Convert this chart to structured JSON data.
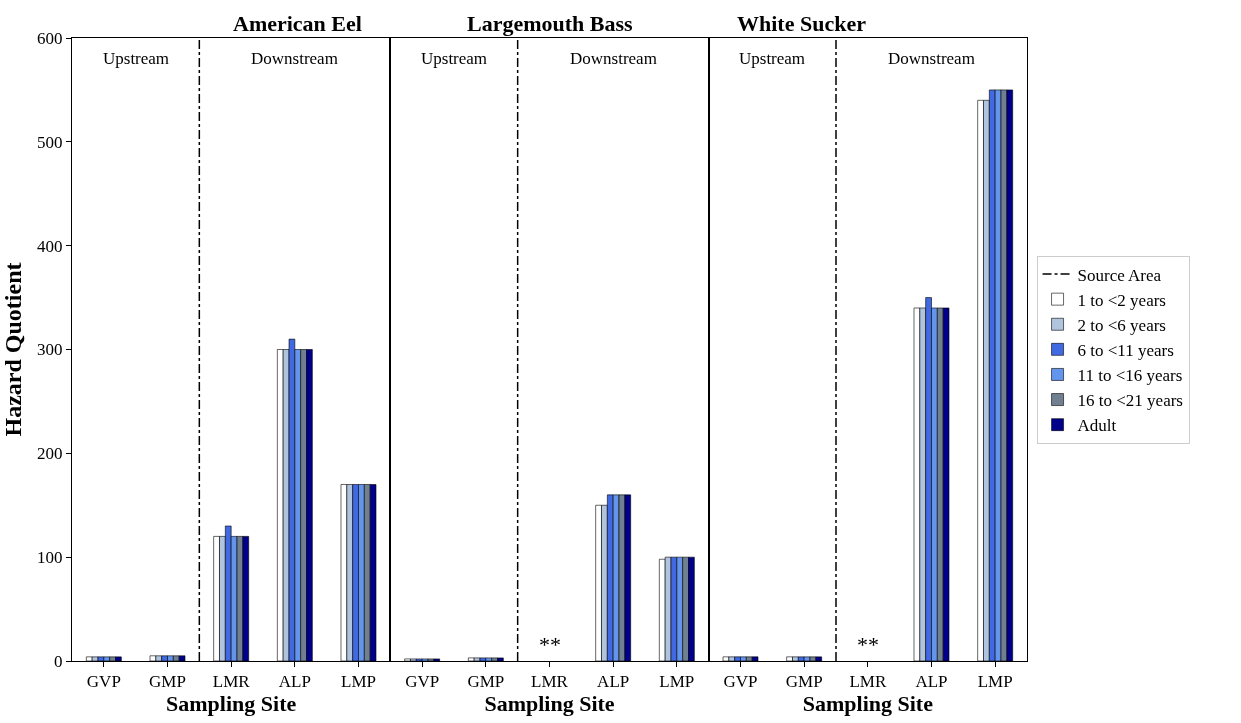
{
  "chart_data": [
    {
      "type": "bar",
      "title": "American Eel",
      "xlabel": "Sampling Site",
      "ylabel": "Hazard Quotient",
      "categories": [
        "GVP",
        "GMP",
        "LMR",
        "ALP",
        "LMP"
      ],
      "ylim": [
        0,
        600
      ],
      "yticks": [
        0,
        100,
        200,
        300,
        400,
        500,
        600
      ],
      "grid": false,
      "legend": "right",
      "series": [
        {
          "name": "1 to <2 years",
          "color": "#ffffff",
          "values": [
            4,
            5,
            120,
            300,
            170
          ]
        },
        {
          "name": "2 to <6 years",
          "color": "#b0c4de",
          "values": [
            4,
            5,
            120,
            300,
            170
          ]
        },
        {
          "name": "6 to <11 years",
          "color": "#4169e1",
          "values": [
            4,
            5,
            130,
            310,
            170
          ]
        },
        {
          "name": "11 to <16 years",
          "color": "#6495ed",
          "values": [
            4,
            5,
            120,
            300,
            170
          ]
        },
        {
          "name": "16 to <21 years",
          "color": "#708090",
          "values": [
            4,
            5,
            120,
            300,
            170
          ]
        },
        {
          "name": "Adult",
          "color": "#00008b",
          "values": [
            4,
            5,
            120,
            300,
            170
          ]
        }
      ],
      "line_style": "dashdot",
      "annotations": [
        "Upstream",
        "Downstream",
        "Source Area"
      ]
    },
    {
      "type": "bar",
      "title": "Largemouth Bass",
      "xlabel": "Sampling Site",
      "categories": [
        "GVP",
        "GMP",
        "LMR",
        "ALP",
        "LMP"
      ],
      "ylim": [
        0,
        600
      ],
      "yticks": [
        0,
        100,
        200,
        300,
        400,
        500,
        600
      ],
      "tick_labels": "x",
      "grid": false,
      "series": [
        {
          "color": "#ffffff",
          "values": [
            2,
            3,
            null,
            150,
            98
          ]
        },
        {
          "color": "#b0c4de",
          "values": [
            2,
            3,
            null,
            150,
            100
          ]
        },
        {
          "color": "#4169e1",
          "values": [
            2,
            3,
            null,
            160,
            100
          ]
        },
        {
          "color": "#6495ed",
          "values": [
            2,
            3,
            null,
            160,
            100
          ]
        },
        {
          "color": "#708090",
          "values": [
            2,
            3,
            null,
            160,
            100
          ]
        },
        {
          "color": "#00008b",
          "values": [
            2,
            3,
            null,
            160,
            100
          ]
        }
      ],
      "line_style": "dashdot",
      "annotations": [
        "Upstream",
        "Downstream",
        "**"
      ]
    },
    {
      "type": "bar",
      "title": "White Sucker",
      "xlabel": "Sampling Site",
      "categories": [
        "GVP",
        "GMP",
        "LMR",
        "ALP",
        "LMP"
      ],
      "ylim": [
        0,
        600
      ],
      "yticks": [
        0,
        100,
        200,
        300,
        400,
        500,
        600
      ],
      "tick_labels": "x",
      "grid": false,
      "series": [
        {
          "color": "#ffffff",
          "values": [
            4,
            4,
            null,
            340,
            540
          ]
        },
        {
          "color": "#b0c4de",
          "values": [
            4,
            4,
            null,
            340,
            540
          ]
        },
        {
          "color": "#4169e1",
          "values": [
            4,
            4,
            null,
            350,
            550
          ]
        },
        {
          "color": "#6495ed",
          "values": [
            4,
            4,
            null,
            340,
            550
          ]
        },
        {
          "color": "#708090",
          "values": [
            4,
            4,
            null,
            340,
            550
          ]
        },
        {
          "color": "#00008b",
          "values": [
            4,
            4,
            null,
            340,
            550
          ]
        }
      ],
      "line_style": "dashdot",
      "annotations": [
        "Upstream",
        "Downstream",
        "**"
      ]
    }
  ]
}
